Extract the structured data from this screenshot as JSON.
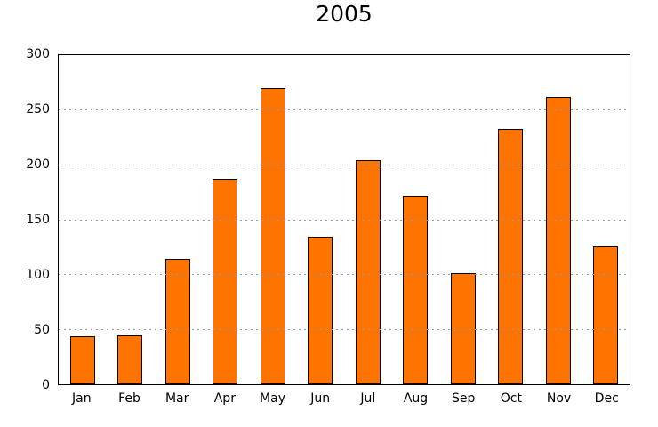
{
  "chart_data": {
    "type": "bar",
    "title": "2005",
    "categories": [
      "Jan",
      "Feb",
      "Mar",
      "Apr",
      "May",
      "Jun",
      "Jul",
      "Aug",
      "Sep",
      "Oct",
      "Nov",
      "Dec"
    ],
    "values": [
      44,
      45,
      114,
      187,
      270,
      135,
      204,
      172,
      101,
      233,
      262,
      126
    ],
    "xlabel": "",
    "ylabel": "",
    "ylim": [
      0,
      300
    ],
    "yticks": [
      0,
      50,
      100,
      150,
      200,
      250,
      300
    ],
    "grid": "horizontal-dashed",
    "legend": "none",
    "bar_color": "#FF7300",
    "bar_edge_color": "#000000",
    "grid_color": "#9A9A9A",
    "background_color": "#FFFFFF"
  }
}
